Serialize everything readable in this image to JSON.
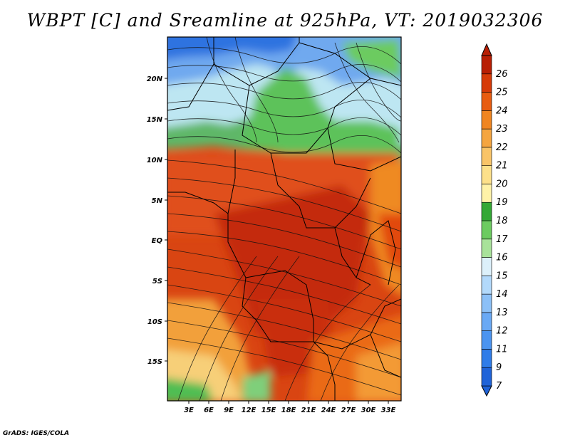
{
  "title": "WBPT [C] and Sreamline at 925hPa, VT: 2019032306",
  "credit": "GrADS: IGES/COLA",
  "map": {
    "lat_labels": [
      "20N",
      "15N",
      "10N",
      "5N",
      "EQ",
      "5S",
      "10S",
      "15S"
    ],
    "lon_labels": [
      "3E",
      "6E",
      "9E",
      "12E",
      "15E",
      "18E",
      "21E",
      "24E",
      "27E",
      "30E",
      "33E"
    ]
  },
  "colorbar": {
    "levels": [
      "7",
      "9",
      "11",
      "12",
      "13",
      "14",
      "15",
      "16",
      "17",
      "18",
      "19",
      "20",
      "21",
      "22",
      "23",
      "24",
      "25",
      "26"
    ],
    "colors": [
      "#1f63d8",
      "#2f7ce8",
      "#4b94f0",
      "#6aa9f5",
      "#8cc0f7",
      "#b2d9fb",
      "#dcf0fa",
      "#a8e29a",
      "#6ccb60",
      "#33a835",
      "#fff2a8",
      "#fde08a",
      "#f9c468",
      "#f5a540",
      "#f08520",
      "#e85c10",
      "#d63a08",
      "#b81e04"
    ]
  },
  "palette": {
    "land_outline": "#000000"
  }
}
